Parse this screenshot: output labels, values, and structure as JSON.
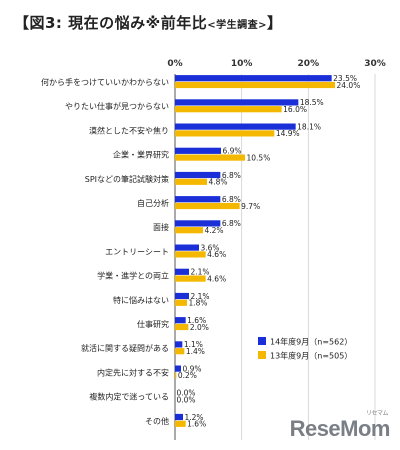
{
  "title": {
    "prefix": "【図3:",
    "main": "現在の悩み※前年比",
    "sub": "<学生調査>",
    "suffix": "】"
  },
  "chart_data": {
    "type": "bar",
    "orientation": "horizontal",
    "title": "【図3: 現在の悩み※前年比<学生調査>】",
    "xlim": [
      0,
      30
    ],
    "x_ticks": [
      "0%",
      "10%",
      "20%",
      "30%"
    ],
    "grid": true,
    "legend_position": "bottom-right",
    "categories": [
      "何から手をつけていいかわからない",
      "やりたい仕事が見つからない",
      "漠然とした不安や焦り",
      "企業・業界研究",
      "SPIなどの筆記試験対策",
      "自己分析",
      "面接",
      "エントリーシート",
      "学業・進学との両立",
      "特に悩みはない",
      "仕事研究",
      "就活に関する疑問がある",
      "内定先に対する不安",
      "複数内定で迷っている",
      "その他"
    ],
    "series": [
      {
        "name": "14年度9月（n=562）",
        "color": "#1a2fd8",
        "values": [
          23.5,
          18.5,
          18.1,
          6.9,
          6.8,
          6.8,
          6.8,
          3.6,
          2.1,
          2.1,
          1.6,
          1.1,
          0.9,
          0.0,
          1.2
        ],
        "labels": [
          "23.5%",
          "18.5%",
          "18.1%",
          "6.9%",
          "6.8%",
          "6.8%",
          "6.8%",
          "3.6%",
          "2.1%",
          "2.1%",
          "1.6%",
          "1.1%",
          "0.9%",
          "0.0%",
          "1.2%"
        ]
      },
      {
        "name": "13年度9月（n=505）",
        "color": "#f5b800",
        "values": [
          24.0,
          16.0,
          14.9,
          10.5,
          4.8,
          9.7,
          4.2,
          4.6,
          4.6,
          1.8,
          2.0,
          1.4,
          0.2,
          0.0,
          1.6
        ],
        "labels": [
          "24.0%",
          "16.0%",
          "14.9%",
          "10.5%",
          "4.8%",
          "9.7%",
          "4.2%",
          "4.6%",
          "4.6%",
          "1.8%",
          "2.0%",
          "1.4%",
          "0.2%",
          "0.0%",
          "1.6%"
        ]
      }
    ]
  },
  "watermark": {
    "text": "ReseMom",
    "ruby": "リセマム"
  }
}
